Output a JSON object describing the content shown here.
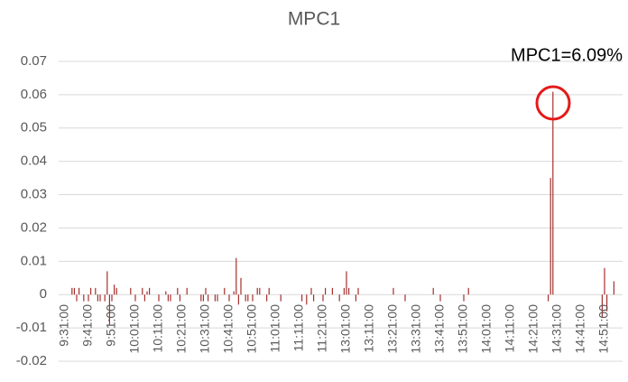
{
  "chart_data": {
    "type": "bar",
    "title": "MPC1",
    "annotation": "MPC1=6.09%",
    "color": "#a5302d",
    "grid": true,
    "ylim": [
      -0.02,
      0.07
    ],
    "yticks": [
      -0.02,
      -0.01,
      0,
      0.01,
      0.02,
      0.03,
      0.04,
      0.05,
      0.06,
      0.07
    ],
    "categories": [
      "9:31:00",
      null,
      null,
      null,
      null,
      null,
      null,
      null,
      null,
      null,
      "9:41:00",
      null,
      null,
      null,
      null,
      null,
      null,
      null,
      null,
      null,
      "9:51:00",
      null,
      null,
      null,
      null,
      null,
      null,
      null,
      null,
      null,
      "10:01:00",
      null,
      null,
      null,
      null,
      null,
      null,
      null,
      null,
      null,
      "10:11:00",
      null,
      null,
      null,
      null,
      null,
      null,
      null,
      null,
      null,
      "10:21:00",
      null,
      null,
      null,
      null,
      null,
      null,
      null,
      null,
      null,
      "10:31:00",
      null,
      null,
      null,
      null,
      null,
      null,
      null,
      null,
      null,
      "10:41:00",
      null,
      null,
      null,
      null,
      null,
      null,
      null,
      null,
      null,
      "10:51:00",
      null,
      null,
      null,
      null,
      null,
      null,
      null,
      null,
      null,
      "11:01:00",
      null,
      null,
      null,
      null,
      null,
      null,
      null,
      null,
      null,
      "11:11:00",
      null,
      null,
      null,
      null,
      null,
      null,
      null,
      null,
      null,
      "11:21:00",
      null,
      null,
      null,
      null,
      null,
      null,
      null,
      null,
      null,
      "13:01:00",
      null,
      null,
      null,
      null,
      null,
      null,
      null,
      null,
      null,
      "13:11:00",
      null,
      null,
      null,
      null,
      null,
      null,
      null,
      null,
      null,
      "13:21:00",
      null,
      null,
      null,
      null,
      null,
      null,
      null,
      null,
      null,
      "13:31:00",
      null,
      null,
      null,
      null,
      null,
      null,
      null,
      null,
      null,
      "13:41:00",
      null,
      null,
      null,
      null,
      null,
      null,
      null,
      null,
      null,
      "13:51:00",
      null,
      null,
      null,
      null,
      null,
      null,
      null,
      null,
      null,
      "14:01:00",
      null,
      null,
      null,
      null,
      null,
      null,
      null,
      null,
      null,
      "14:11:00",
      null,
      null,
      null,
      null,
      null,
      null,
      null,
      null,
      null,
      "14:21:00",
      null,
      null,
      null,
      null,
      null,
      null,
      null,
      null,
      null,
      "14:31:00",
      null,
      null,
      null,
      null,
      null,
      null,
      null,
      null,
      null,
      "14:41:00",
      null,
      null,
      null,
      null,
      null,
      null,
      null,
      null,
      null,
      "14:51:00",
      null,
      null,
      null,
      null,
      null,
      null,
      null,
      null,
      null
    ],
    "values": [
      0,
      0,
      0,
      0.002,
      0.002,
      -0.002,
      0.002,
      0,
      -0.002,
      0,
      -0.002,
      0.002,
      0,
      0.002,
      -0.002,
      -0.002,
      0,
      -0.002,
      0.007,
      -0.009,
      -0.002,
      0.003,
      0.002,
      0,
      0,
      0,
      0,
      0,
      0.002,
      0,
      -0.002,
      0,
      0,
      0.002,
      -0.002,
      0.001,
      0.002,
      0,
      0,
      0,
      -0.002,
      0,
      0,
      0.001,
      -0.002,
      -0.002,
      0,
      0,
      0.002,
      -0.002,
      0,
      0,
      0.002,
      0,
      0,
      0,
      0,
      0,
      -0.002,
      -0.002,
      0.002,
      -0.002,
      0,
      0,
      -0.002,
      -0.002,
      0,
      0,
      0.002,
      0,
      -0.002,
      0,
      0.001,
      0.011,
      -0.003,
      0.005,
      0,
      -0.002,
      -0.002,
      0,
      -0.002,
      0,
      0.002,
      0.002,
      0,
      0,
      -0.002,
      0.002,
      0,
      0,
      0,
      0,
      -0.002,
      0,
      0,
      0,
      0,
      0,
      0,
      0,
      0,
      -0.002,
      0,
      -0.003,
      0,
      0.002,
      -0.002,
      0,
      0,
      0,
      -0.002,
      0.002,
      0,
      0,
      0.002,
      0,
      0,
      -0.002,
      0,
      0.002,
      0.007,
      0.002,
      0,
      0,
      -0.002,
      0.002,
      0,
      0,
      0,
      0,
      0,
      0,
      0,
      0,
      0,
      0,
      0,
      0,
      0,
      0,
      0.002,
      0,
      0,
      0,
      0,
      -0.002,
      0,
      0,
      0,
      0,
      0,
      0,
      0,
      0,
      0,
      0,
      0,
      0.002,
      0,
      0,
      -0.002,
      0,
      0,
      0,
      0,
      0,
      0,
      0,
      0,
      0,
      -0.002,
      0,
      0.002,
      0,
      0,
      0,
      0,
      0,
      0,
      0,
      0,
      0,
      0,
      0,
      0,
      0,
      0,
      0,
      0,
      0,
      0,
      0,
      0,
      0,
      0,
      0,
      0,
      0,
      0,
      0,
      0,
      0,
      0,
      0,
      0,
      0,
      -0.002,
      0.035,
      0.0609,
      0,
      0,
      0,
      0,
      0,
      0,
      0,
      0,
      0,
      0,
      0,
      0,
      0,
      0,
      0,
      0,
      0,
      0,
      0,
      0,
      -0.007,
      0.008,
      -0.005,
      0,
      0,
      0.004,
      0,
      0,
      0,
      0,
      0
    ]
  }
}
